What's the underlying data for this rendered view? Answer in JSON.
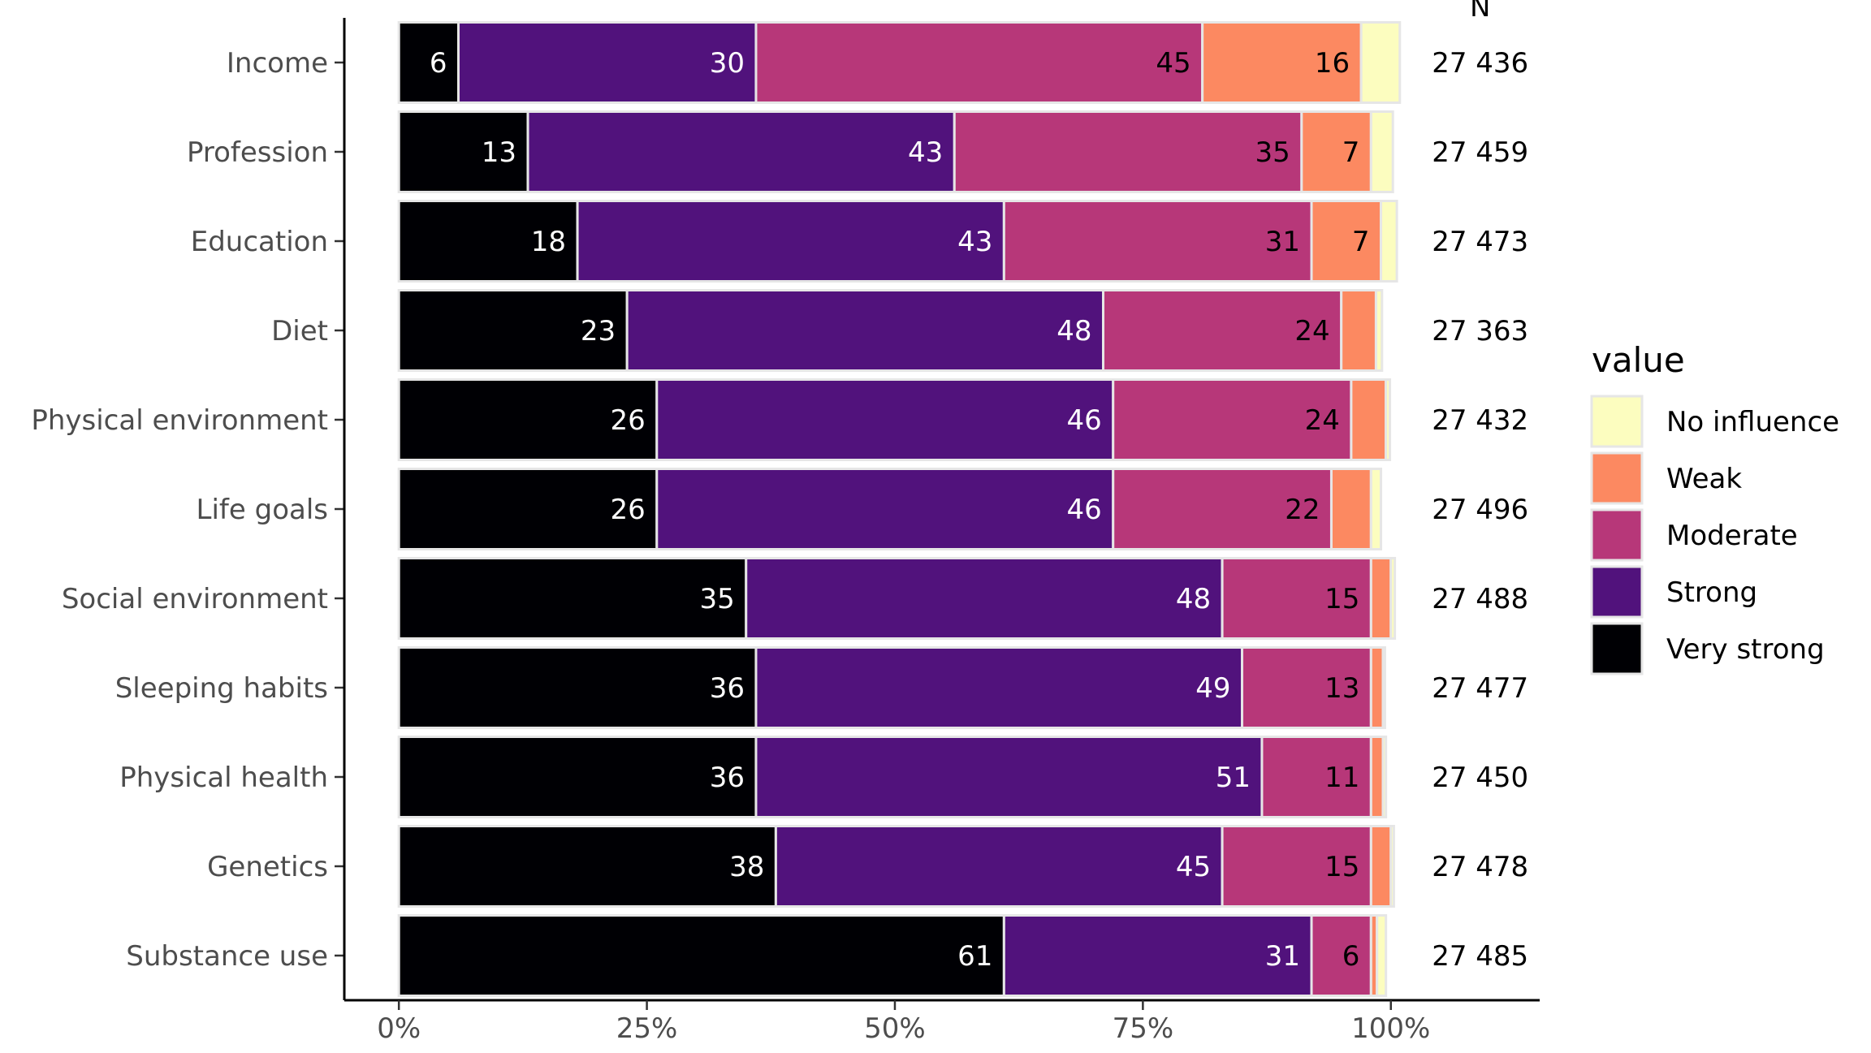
{
  "chart_data": {
    "type": "bar",
    "orientation": "horizontal",
    "stacked": true,
    "categories": [
      "Income",
      "Profession",
      "Education",
      "Diet",
      "Physical environment",
      "Life goals",
      "Social environment",
      "Sleeping habits",
      "Physical health",
      "Genetics",
      "Substance use"
    ],
    "series": [
      {
        "name": "Very strong",
        "color": "#000004",
        "label_color": "#ffffff",
        "values": [
          6,
          13,
          18,
          23,
          26,
          26,
          35,
          36,
          36,
          38,
          61
        ]
      },
      {
        "name": "Strong",
        "color": "#51127c",
        "label_color": "#ffffff",
        "values": [
          30,
          43,
          43,
          48,
          46,
          46,
          48,
          49,
          51,
          45,
          31
        ]
      },
      {
        "name": "Moderate",
        "color": "#b73779",
        "label_color": "#000000",
        "values": [
          45,
          35,
          31,
          24,
          24,
          22,
          15,
          13,
          11,
          15,
          6
        ]
      },
      {
        "name": "Weak",
        "color": "#fc8961",
        "label_color": "#000000",
        "values": [
          16,
          7,
          7,
          3.5,
          3.5,
          4,
          2,
          1.2,
          1.2,
          2,
          0.6
        ]
      },
      {
        "name": "No influence",
        "color": "#fcfdbf",
        "label_color": "#000000",
        "values": [
          3.9,
          2.2,
          1.6,
          0.6,
          0.4,
          1,
          0.4,
          0.2,
          0.3,
          0.3,
          0.9
        ]
      }
    ],
    "data_labels": [
      [
        "6",
        "30",
        "45",
        "16",
        ""
      ],
      [
        "13",
        "43",
        "35",
        "7",
        ""
      ],
      [
        "18",
        "43",
        "31",
        "7",
        ""
      ],
      [
        "23",
        "48",
        "24",
        "",
        ""
      ],
      [
        "26",
        "46",
        "24",
        "",
        ""
      ],
      [
        "26",
        "46",
        "22",
        "",
        ""
      ],
      [
        "35",
        "48",
        "15",
        "",
        ""
      ],
      [
        "36",
        "49",
        "13",
        "",
        ""
      ],
      [
        "36",
        "51",
        "11",
        "",
        ""
      ],
      [
        "38",
        "45",
        "15",
        "",
        ""
      ],
      [
        "61",
        "31",
        "6",
        "",
        ""
      ]
    ],
    "n_header": "N",
    "n_values": [
      "27 436",
      "27 459",
      "27 473",
      "27 363",
      "27 432",
      "27 496",
      "27 488",
      "27 477",
      "27 450",
      "27 478",
      "27 485"
    ],
    "xlim": [
      -5.5,
      115
    ],
    "xticks": [
      0,
      25,
      50,
      75,
      100
    ],
    "xtick_labels": [
      "0%",
      "25%",
      "50%",
      "75%",
      "100%"
    ],
    "legend_title": "value",
    "legend_order": [
      "No influence",
      "Weak",
      "Moderate",
      "Strong",
      "Very strong"
    ],
    "legend_position": "right",
    "grid": false
  }
}
